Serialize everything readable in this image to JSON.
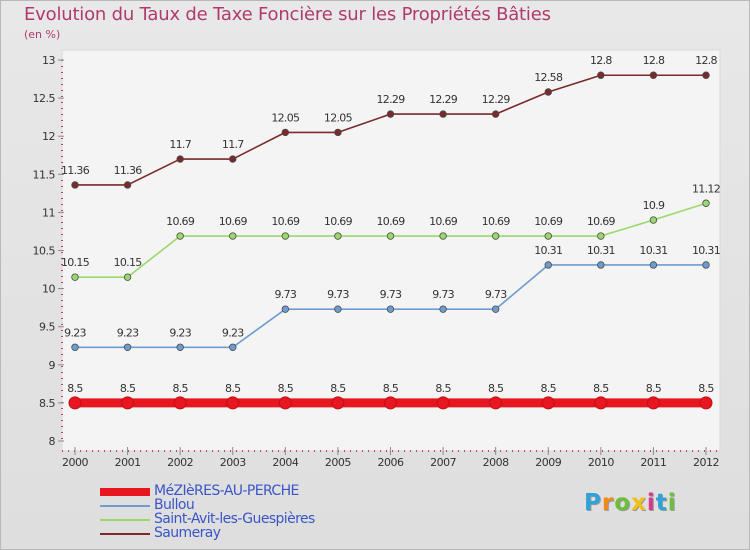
{
  "chart_data": {
    "type": "line",
    "title": "Evolution du Taux de Taxe Foncière sur les Propriétés Bâties",
    "unit_label": "(en %)",
    "x": [
      "2000",
      "2001",
      "2002",
      "2003",
      "2004",
      "2005",
      "2006",
      "2007",
      "2008",
      "2009",
      "2010",
      "2011",
      "2012"
    ],
    "ylim": [
      8,
      13
    ],
    "yticks": [
      "8",
      "8.5",
      "9",
      "9.5",
      "10",
      "10.5",
      "11",
      "11.5",
      "12",
      "12.5",
      "13"
    ],
    "grid": false,
    "legend_position": "bottom-left",
    "series": [
      {
        "name": "MéZIèRES-AU-PERCHE",
        "color": "#e8161e",
        "values": [
          8.5,
          8.5,
          8.5,
          8.5,
          8.5,
          8.5,
          8.5,
          8.5,
          8.5,
          8.5,
          8.5,
          8.5,
          8.5
        ],
        "labels": [
          "8.5",
          "8.5",
          "8.5",
          "8.5",
          "8.5",
          "8.5",
          "8.5",
          "8.5",
          "8.5",
          "8.5",
          "8.5",
          "8.5",
          "8.5"
        ]
      },
      {
        "name": "Bullou",
        "color": "#6e9ccf",
        "values": [
          9.23,
          9.23,
          9.23,
          9.23,
          9.73,
          9.73,
          9.73,
          9.73,
          9.73,
          10.31,
          10.31,
          10.31,
          10.31
        ],
        "labels": [
          "9.23",
          "9.23",
          "9.23",
          "9.23",
          "9.73",
          "9.73",
          "9.73",
          "9.73",
          "9.73",
          "10.31",
          "10.31",
          "10.31",
          "10.31"
        ]
      },
      {
        "name": "Saint-Avit-les-Guespières",
        "color": "#9ad86a",
        "values": [
          10.15,
          10.15,
          10.69,
          10.69,
          10.69,
          10.69,
          10.69,
          10.69,
          10.69,
          10.69,
          10.69,
          10.9,
          11.12
        ],
        "labels": [
          "10.15",
          "10.15",
          "10.69",
          "10.69",
          "10.69",
          "10.69",
          "10.69",
          "10.69",
          "10.69",
          "10.69",
          "10.69",
          "10.9",
          "11.12"
        ]
      },
      {
        "name": "Saumeray",
        "color": "#7a2a2a",
        "values": [
          11.36,
          11.36,
          11.7,
          11.7,
          12.05,
          12.05,
          12.29,
          12.29,
          12.29,
          12.58,
          12.8,
          12.8,
          12.8
        ],
        "labels": [
          "11.36",
          "11.36",
          "11.7",
          "11.7",
          "12.05",
          "12.05",
          "12.29",
          "12.29",
          "12.29",
          "12.58",
          "12.8",
          "12.8",
          "12.8"
        ]
      }
    ]
  },
  "logo": {
    "letters": [
      "P",
      "r",
      "o",
      "x",
      "i",
      "t",
      "i"
    ],
    "colors": [
      "#2fa2d8",
      "#f08a1c",
      "#6cbf3c",
      "#f3c018",
      "#d33a8a",
      "#2fa2d8",
      "#6cbf3c"
    ]
  }
}
